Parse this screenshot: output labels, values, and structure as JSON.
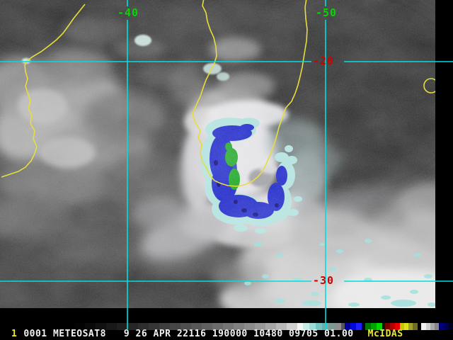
{
  "status_bar": {
    "frame_number": "1",
    "info_text": "0001 METEOSAT8   9 26 APR 22116 190000 10480 09705 01.00",
    "image_id": "0001",
    "satellite": "METEOSAT8",
    "band": "9",
    "date": "26 APR",
    "julian_day": "22116",
    "time": "190000",
    "line": "10480",
    "element": "09705",
    "zoom_factor": "01.00",
    "brand": "McIDAS"
  },
  "map": {
    "grid_labels": [
      {
        "id": "lon-40",
        "text": "-40",
        "color": "#00d800"
      },
      {
        "id": "lon-50",
        "text": "-50",
        "color": "#00d800"
      },
      {
        "id": "lat-20",
        "text": "-20",
        "color": "#cf0000"
      },
      {
        "id": "lat-30",
        "text": "-30",
        "color": "#cf0000"
      }
    ],
    "overlay_colors": {
      "coastline": "#e6de3c",
      "graticule": "#00dede",
      "enhancement_blue": "#1822c8",
      "enhancement_green": "#16a41e",
      "enhancement_cyan": "#aee0dc"
    }
  },
  "colorbar": {
    "segments": [
      {
        "w": 15,
        "c": "#030303"
      },
      {
        "w": 15,
        "c": "#0a0a0a"
      },
      {
        "w": 15,
        "c": "#111111"
      },
      {
        "w": 15,
        "c": "#181818"
      },
      {
        "w": 15,
        "c": "#1f1f1f"
      },
      {
        "w": 15,
        "c": "#262626"
      },
      {
        "w": 15,
        "c": "#2e2e2e"
      },
      {
        "w": 15,
        "c": "#363636"
      },
      {
        "w": 15,
        "c": "#3e3e3e"
      },
      {
        "w": 15,
        "c": "#464646"
      },
      {
        "w": 15,
        "c": "#4f4f4f"
      },
      {
        "w": 15,
        "c": "#585858"
      },
      {
        "w": 15,
        "c": "#616161"
      },
      {
        "w": 15,
        "c": "#6b6b6b"
      },
      {
        "w": 15,
        "c": "#757575"
      },
      {
        "w": 15,
        "c": "#808080"
      },
      {
        "w": 15,
        "c": "#8c8c8c"
      },
      {
        "w": 15,
        "c": "#989898"
      },
      {
        "w": 15,
        "c": "#a6a6a6"
      },
      {
        "w": 15,
        "c": "#b8b8b8"
      },
      {
        "w": 15,
        "c": "#d0d0d0"
      },
      {
        "w": 8,
        "c": "#f4f4f4"
      },
      {
        "w": 9,
        "c": "#c6ece8"
      },
      {
        "w": 9,
        "c": "#9cdcd8"
      },
      {
        "w": 9,
        "c": "#74c4c0"
      },
      {
        "w": 9,
        "c": "#6aacb0"
      },
      {
        "w": 9,
        "c": "#7e9894"
      },
      {
        "w": 9,
        "c": "#8e8e8e"
      },
      {
        "w": 5,
        "c": "#55555e"
      },
      {
        "w": 8,
        "c": "#0000a0"
      },
      {
        "w": 8,
        "c": "#0008dc"
      },
      {
        "w": 8,
        "c": "#2020ff"
      },
      {
        "w": 5,
        "c": "#000028"
      },
      {
        "w": 8,
        "c": "#007800"
      },
      {
        "w": 8,
        "c": "#00a400"
      },
      {
        "w": 8,
        "c": "#00d800"
      },
      {
        "w": 4,
        "c": "#002000"
      },
      {
        "w": 7,
        "c": "#780000"
      },
      {
        "w": 7,
        "c": "#b40000"
      },
      {
        "w": 7,
        "c": "#ee0000"
      },
      {
        "w": 6,
        "c": "#c8c800"
      },
      {
        "w": 6,
        "c": "#e0e020"
      },
      {
        "w": 6,
        "c": "#a0a030"
      },
      {
        "w": 7,
        "c": "#6e6e28"
      },
      {
        "w": 5,
        "c": "#000000"
      },
      {
        "w": 7,
        "c": "#f0f0f0"
      },
      {
        "w": 6,
        "c": "#d0d0d0"
      },
      {
        "w": 6,
        "c": "#a8a8a8"
      },
      {
        "w": 6,
        "c": "#888888"
      },
      {
        "w": 7,
        "c": "#000078"
      },
      {
        "w": 7,
        "c": "#000050"
      },
      {
        "w": 6,
        "c": "#000020"
      }
    ]
  }
}
